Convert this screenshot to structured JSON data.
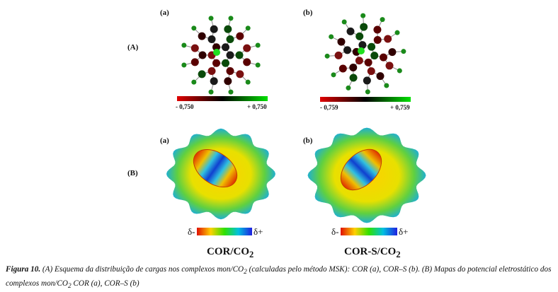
{
  "figure": {
    "A": {
      "label": "(A)",
      "a": {
        "label": "(a)",
        "scale_min": "- 0,750",
        "scale_max": "+ 0,750"
      },
      "b": {
        "label": "(b)",
        "scale_min": "- 0,759",
        "scale_max": "+ 0,759"
      }
    },
    "B": {
      "label": "(B)",
      "a": {
        "label": "(a)",
        "delta_minus": "δ-",
        "delta_plus": "δ+",
        "name": "COR/CO",
        "name_sub": "2"
      },
      "b": {
        "label": "(b)",
        "delta_minus": "δ-",
        "delta_plus": "δ+",
        "name": "COR-S/CO",
        "name_sub": "2"
      }
    }
  },
  "caption": {
    "number": "Figura 10.",
    "parts": [
      " (A) Esquema da distribuição de cargas nos complexos mon/CO",
      "2",
      " (calculadas pelo método MSK): COR (a), COR–S (b). (B) Mapas do potencial eletrostático dos complexos mon/CO",
      "2",
      " COR (a), COR–S (b)"
    ]
  }
}
